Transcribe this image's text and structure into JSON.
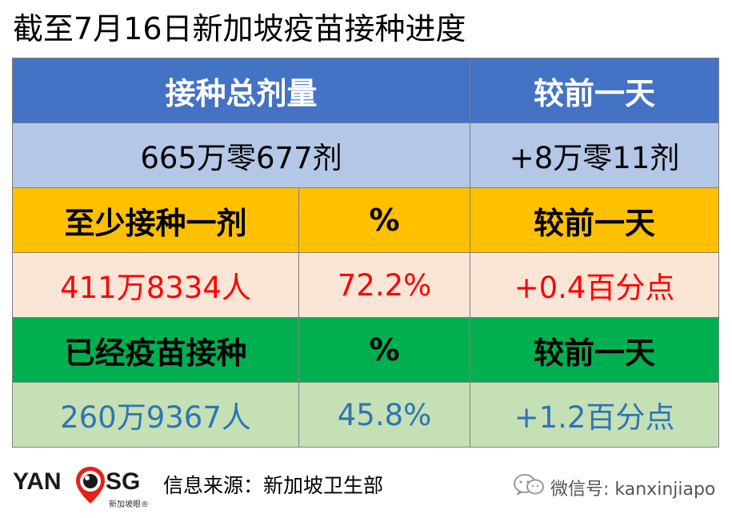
{
  "title": "截至7月16日新加坡疫苗接种进度",
  "table": {
    "header": {
      "label": "接种总剂量",
      "compare": "较前一天"
    },
    "total": {
      "value": "665万零677剂",
      "compare": "+8万零11剂"
    },
    "first_dose": {
      "header": {
        "label": "至少接种一剂",
        "pct": "%",
        "compare": "较前一天"
      },
      "values": {
        "people": "411万8334人",
        "pct": "72.2%",
        "compare": "+0.4百分点"
      }
    },
    "fully_vaccinated": {
      "header": {
        "label": "已经疫苗接种",
        "pct": "%",
        "compare": "较前一天"
      },
      "values": {
        "people": "260万9367人",
        "pct": "45.8%",
        "compare": "+1.2百分点"
      }
    }
  },
  "footer": {
    "logo": {
      "left": "YAN",
      "right": "SG",
      "sub": "新加坡眼®"
    },
    "source": "信息来源：新加坡卫生部",
    "wechat": "微信号: kanxinjiapo"
  },
  "colors": {
    "header_blue": "#4472c4",
    "total_light_blue": "#b4c7e7",
    "first_dose_orange": "#ffc000",
    "first_dose_light": "#fbe5d6",
    "first_dose_text": "#ff0000",
    "fully_green": "#00b050",
    "fully_light": "#c5e0b4",
    "fully_text": "#2e75b6"
  }
}
